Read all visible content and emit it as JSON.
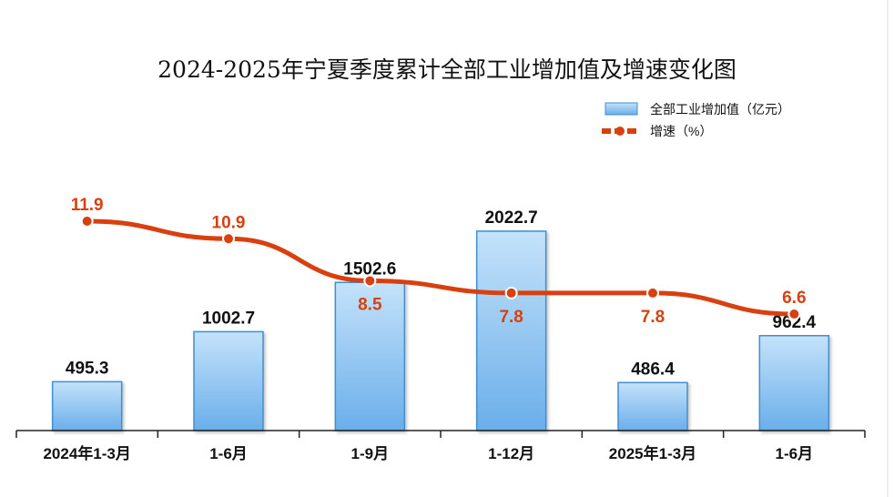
{
  "chart_data": {
    "type": "bar+line",
    "title": "2024-2025年宁夏季度累计全部工业增加值及增速变化图",
    "categories": [
      "2024年1-3月",
      "1-6月",
      "1-9月",
      "1-12月",
      "2025年1-3月",
      "1-6月"
    ],
    "series": [
      {
        "name": "全部工业增加值（亿元）",
        "type": "bar",
        "values": [
          495.3,
          1002.7,
          1502.6,
          2022.7,
          486.4,
          962.4
        ],
        "labels": [
          "495.3",
          "1002.7",
          "1502.6",
          "2022.7",
          "486.4",
          "962.4"
        ],
        "color": "#6fb2ea"
      },
      {
        "name": "增速（%）",
        "type": "line",
        "values": [
          11.9,
          10.9,
          8.5,
          7.8,
          7.8,
          6.6
        ],
        "labels": [
          "11.9",
          "10.9",
          "8.5",
          "7.8",
          "7.8",
          "6.6"
        ],
        "color": "#d9400f"
      }
    ],
    "legend": "top-right",
    "grid": false
  }
}
